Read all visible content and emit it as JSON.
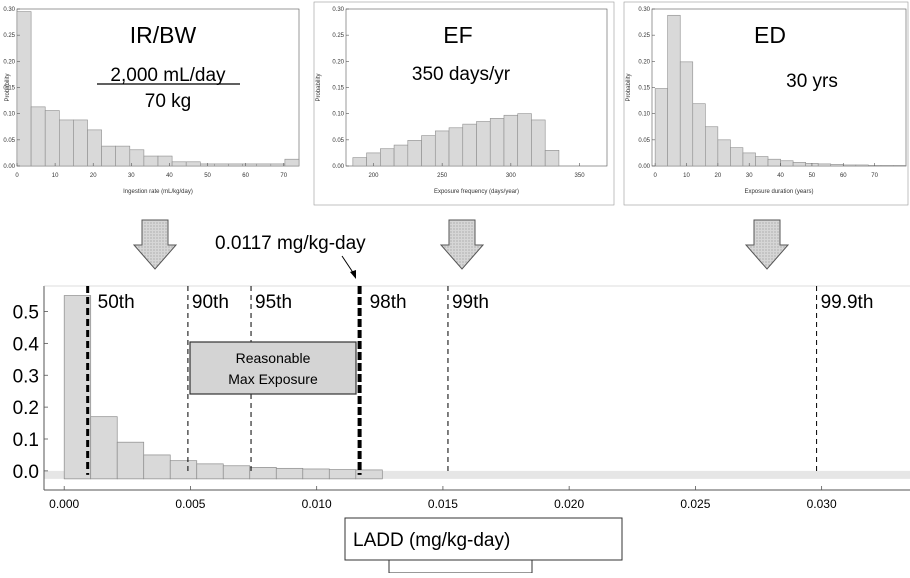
{
  "colors": {
    "bar_fill": "#d9d9d9",
    "bar_stroke": "#8c8c8c",
    "axis": "#555555",
    "arrow_fill": "#cfcfcf"
  },
  "panels": {
    "irbw": {
      "title": "IR/BW",
      "note_line1": "2,000 mL/day",
      "note_line2": "70 kg"
    },
    "ef": {
      "title": "EF",
      "note_line1": "350 days/yr"
    },
    "ed": {
      "title": "ED",
      "note_line1": "30 yrs"
    }
  },
  "annotation_value": "0.0117 mg/kg-day",
  "rme_box": {
    "line1": "Reasonable",
    "line2": "Max Exposure"
  },
  "xlabel_box": "LADD (mg/kg-day)",
  "arrow_icon": "down-arrow-icon",
  "chart_data": [
    {
      "id": "irbw",
      "type": "bar",
      "xlabel": "Ingestion rate (mL/kg/day)",
      "ylabel": "Probability",
      "xlim": [
        0,
        74
      ],
      "ylim": [
        0,
        0.3
      ],
      "xticks": [
        0,
        10,
        20,
        30,
        40,
        50,
        60,
        70
      ],
      "yticks": [
        0.0,
        0.05,
        0.1,
        0.15,
        0.2,
        0.25,
        0.3
      ],
      "bin_start": 0,
      "bin_width": 3.7,
      "values": [
        0.295,
        0.113,
        0.106,
        0.088,
        0.088,
        0.069,
        0.038,
        0.038,
        0.031,
        0.019,
        0.019,
        0.008,
        0.008,
        0.004,
        0.004,
        0.004,
        0.004,
        0.004,
        0.004,
        0.013
      ]
    },
    {
      "id": "ef",
      "type": "bar",
      "xlabel": "Exposure frequency (days/year)",
      "ylabel": "Probability",
      "xlim": [
        180,
        370
      ],
      "ylim": [
        0,
        0.3
      ],
      "xticks": [
        200,
        250,
        300,
        350
      ],
      "yticks": [
        0.0,
        0.05,
        0.1,
        0.15,
        0.2,
        0.25,
        0.3
      ],
      "bin_start": 185,
      "bin_width": 10,
      "values": [
        0.016,
        0.025,
        0.033,
        0.04,
        0.049,
        0.058,
        0.067,
        0.073,
        0.08,
        0.085,
        0.091,
        0.097,
        0.1,
        0.088,
        0.03
      ]
    },
    {
      "id": "ed",
      "type": "bar",
      "xlabel": "Exposure duration (years)",
      "ylabel": "Probability",
      "xlim": [
        -1,
        80
      ],
      "ylim": [
        0,
        0.3
      ],
      "xticks": [
        0,
        10,
        20,
        30,
        40,
        50,
        60,
        70
      ],
      "yticks": [
        0.0,
        0.05,
        0.1,
        0.15,
        0.2,
        0.25,
        0.3
      ],
      "bin_start": 0,
      "bin_width": 4,
      "values": [
        0.148,
        0.288,
        0.199,
        0.119,
        0.075,
        0.05,
        0.035,
        0.025,
        0.018,
        0.013,
        0.01,
        0.007,
        0.005,
        0.004,
        0.003,
        0.002,
        0.002,
        0.001,
        0.001,
        0.001
      ]
    },
    {
      "id": "ladd",
      "type": "bar",
      "xlabel": "LADD (mg/kg-day)",
      "ylabel": "",
      "xlim": [
        -0.0008,
        0.0335
      ],
      "ylim": [
        -0.06,
        0.58
      ],
      "xticks": [
        0.0,
        0.005,
        0.01,
        0.015,
        0.02,
        0.025,
        0.03
      ],
      "xtick_labels": [
        "0.000",
        "0.005",
        "0.010",
        "0.015",
        "0.020",
        "0.025",
        "0.030"
      ],
      "yticks": [
        0.0,
        0.1,
        0.2,
        0.3,
        0.4,
        0.5
      ],
      "ytick_labels": [
        "0.0",
        "0.1",
        "0.2",
        "0.3",
        "0.4",
        "0.5"
      ],
      "bin_start": 0,
      "bin_width": 0.00105,
      "values": [
        0.55,
        0.17,
        0.09,
        0.05,
        0.032,
        0.022,
        0.016,
        0.011,
        0.008,
        0.006,
        0.004,
        0.003
      ],
      "percentiles": [
        {
          "label": "50th",
          "x": 0.00093,
          "style": "thick-dashed"
        },
        {
          "label": "90th",
          "x": 0.0049,
          "style": "dashed"
        },
        {
          "label": "95th",
          "x": 0.0074,
          "style": "dashed"
        },
        {
          "label": "98th",
          "x": 0.0117,
          "style": "bold-dashed"
        },
        {
          "label": "99th",
          "x": 0.0152,
          "style": "dashed"
        },
        {
          "label": "99.9th",
          "x": 0.0298,
          "style": "dashed"
        }
      ]
    }
  ]
}
